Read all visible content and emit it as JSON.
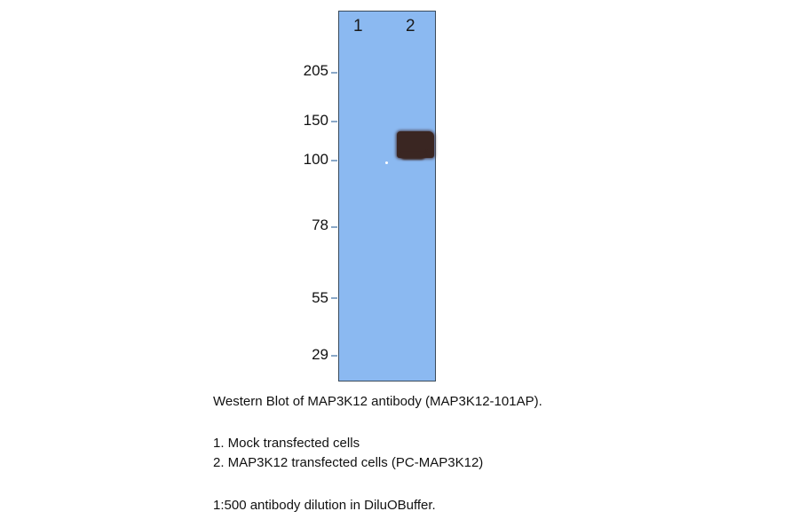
{
  "blot": {
    "lanes": [
      "1",
      "2"
    ],
    "markers": [
      "205",
      "150",
      "100",
      "78",
      "55",
      "29"
    ],
    "membrane_color": "#8bb9f1",
    "band_color": "#3a2622"
  },
  "caption": {
    "title": "Western Blot of MAP3K12 antibody (MAP3K12-101AP).",
    "lane1": "1. Mock transfected cells",
    "lane2": "2. MAP3K12 transfected cells (PC-MAP3K12)",
    "dilution": "1:500 antibody dilution in DiluOBuffer."
  }
}
